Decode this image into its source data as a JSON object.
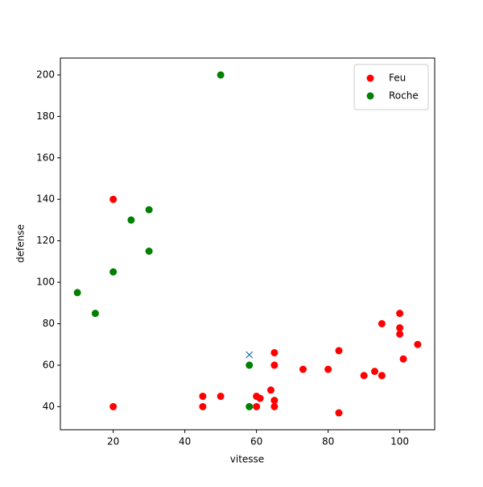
{
  "chart_data": {
    "type": "scatter",
    "x_label": "vitesse",
    "y_label": "defense",
    "series": [
      {
        "name": "Feu",
        "color": "#ff0000",
        "marker": "o",
        "x": [
          20,
          20,
          45,
          45,
          50,
          60,
          61,
          60,
          64,
          65,
          65,
          65,
          65,
          73,
          80,
          83,
          83,
          90,
          93,
          95,
          95,
          100,
          100,
          100,
          101,
          105
        ],
        "values": [
          140,
          40,
          45,
          40,
          45,
          45,
          44,
          40,
          48,
          43,
          40,
          66,
          60,
          58,
          58,
          67,
          37,
          55,
          57,
          55,
          80,
          85,
          78,
          75,
          63,
          70
        ]
      },
      {
        "name": "Roche",
        "color": "#008000",
        "marker": "o",
        "x": [
          50,
          30,
          25,
          30,
          20,
          10,
          15,
          58,
          58
        ],
        "values": [
          200,
          135,
          130,
          115,
          105,
          95,
          85,
          60,
          40
        ]
      },
      {
        "color": "#1f77b4",
        "marker": "x",
        "x": [
          58
        ],
        "values": [
          65
        ]
      }
    ],
    "xlim": [
      5.25,
      109.75
    ],
    "ylim": [
      28.85,
      208.15
    ],
    "xticks": [
      20,
      40,
      60,
      80,
      100
    ],
    "yticks": [
      40,
      60,
      80,
      100,
      120,
      140,
      160,
      180,
      200
    ],
    "legend": "upper right"
  }
}
